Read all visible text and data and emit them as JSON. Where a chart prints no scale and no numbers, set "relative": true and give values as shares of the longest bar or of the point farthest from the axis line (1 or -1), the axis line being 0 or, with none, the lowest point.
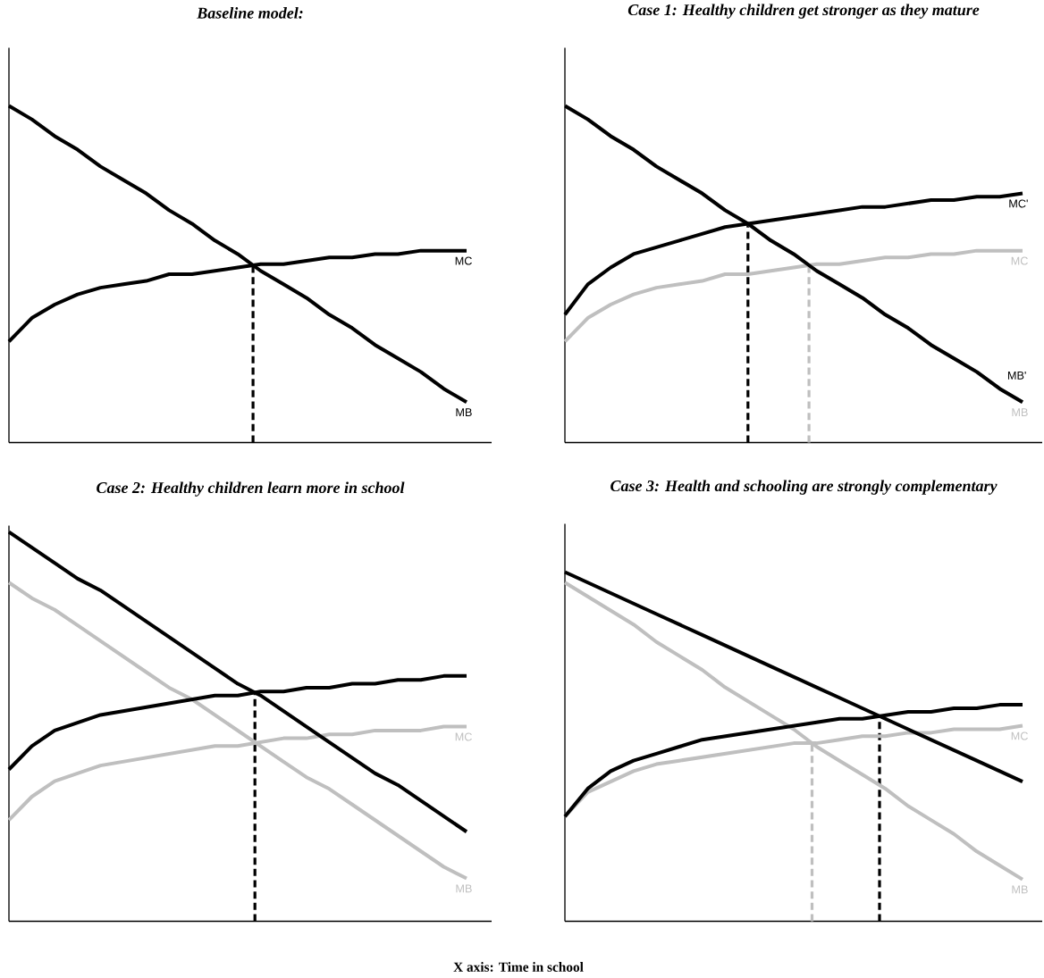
{
  "chart_data": [
    {
      "type": "line",
      "title": "Baseline model:",
      "relative": true,
      "tick_labels": false,
      "categories": [
        null,
        null,
        null,
        null,
        null,
        null,
        null,
        null,
        null,
        null,
        null,
        null,
        null,
        null,
        null,
        null,
        null,
        null,
        null,
        null,
        null
      ],
      "series": [
        {
          "name": "MC",
          "color": "#000000",
          "values": [
            0.3,
            0.37,
            0.41,
            0.44,
            0.46,
            0.47,
            0.48,
            0.5,
            0.5,
            0.51,
            0.52,
            0.53,
            0.53,
            0.54,
            0.55,
            0.55,
            0.56,
            0.56,
            0.57,
            0.57,
            0.57
          ]
        },
        {
          "name": "MB",
          "color": "#000000",
          "values": [
            1.0,
            0.96,
            0.91,
            0.87,
            0.82,
            0.78,
            0.74,
            0.69,
            0.65,
            0.6,
            0.56,
            0.51,
            0.47,
            0.43,
            0.38,
            0.34,
            0.29,
            0.25,
            0.21,
            0.16,
            0.12
          ]
        }
      ]
    },
    {
      "type": "line",
      "title": "Case 1: Healthy children get stronger as they mature",
      "relative": true,
      "tick_labels": false,
      "categories": [
        null,
        null,
        null,
        null,
        null,
        null,
        null,
        null,
        null,
        null,
        null,
        null,
        null,
        null,
        null,
        null,
        null,
        null,
        null,
        null,
        null
      ],
      "series": [
        {
          "name": "MC",
          "color": "#bfbfbf",
          "values": [
            0.3,
            0.37,
            0.41,
            0.44,
            0.46,
            0.47,
            0.48,
            0.5,
            0.5,
            0.51,
            0.52,
            0.53,
            0.53,
            0.54,
            0.55,
            0.55,
            0.56,
            0.56,
            0.57,
            0.57,
            0.57
          ]
        },
        {
          "name": "MB",
          "color": "#bfbfbf",
          "values": [
            1.0,
            0.96,
            0.91,
            0.87,
            0.82,
            0.78,
            0.74,
            0.69,
            0.65,
            0.6,
            0.56,
            0.51,
            0.47,
            0.43,
            0.38,
            0.34,
            0.29,
            0.25,
            0.21,
            0.16,
            0.12
          ]
        },
        {
          "name": "MC'",
          "color": "#000000",
          "values": [
            0.38,
            0.47,
            0.52,
            0.56,
            0.58,
            0.6,
            0.62,
            0.64,
            0.65,
            0.66,
            0.67,
            0.68,
            0.69,
            0.7,
            0.7,
            0.71,
            0.72,
            0.72,
            0.73,
            0.73,
            0.74
          ]
        },
        {
          "name": "MB'",
          "color": "#000000",
          "values": [
            1.0,
            0.96,
            0.91,
            0.87,
            0.82,
            0.78,
            0.74,
            0.69,
            0.65,
            0.6,
            0.56,
            0.51,
            0.47,
            0.43,
            0.38,
            0.34,
            0.29,
            0.25,
            0.21,
            0.16,
            0.12
          ]
        }
      ]
    },
    {
      "type": "line",
      "title": "Case 2: Healthy children learn more in school",
      "relative": true,
      "tick_labels": false,
      "categories": [
        null,
        null,
        null,
        null,
        null,
        null,
        null,
        null,
        null,
        null,
        null,
        null,
        null,
        null,
        null,
        null,
        null,
        null,
        null,
        null,
        null
      ],
      "series": [
        {
          "name": "MC",
          "color": "#bfbfbf",
          "values": [
            0.26,
            0.32,
            0.36,
            0.38,
            0.4,
            0.41,
            0.42,
            0.43,
            0.44,
            0.45,
            0.45,
            0.46,
            0.47,
            0.47,
            0.48,
            0.48,
            0.49,
            0.49,
            0.49,
            0.5,
            0.5
          ]
        },
        {
          "name": "MB",
          "color": "#bfbfbf",
          "values": [
            0.87,
            0.83,
            0.8,
            0.76,
            0.72,
            0.68,
            0.64,
            0.6,
            0.57,
            0.53,
            0.49,
            0.45,
            0.41,
            0.37,
            0.34,
            0.3,
            0.26,
            0.22,
            0.18,
            0.14,
            0.11
          ]
        },
        {
          "color": "#000000",
          "values": [
            0.39,
            0.45,
            0.49,
            0.51,
            0.53,
            0.54,
            0.55,
            0.56,
            0.57,
            0.58,
            0.58,
            0.59,
            0.59,
            0.6,
            0.6,
            0.61,
            0.61,
            0.62,
            0.62,
            0.63,
            0.63
          ]
        },
        {
          "color": "#000000",
          "values": [
            1.0,
            0.96,
            0.92,
            0.88,
            0.85,
            0.81,
            0.77,
            0.73,
            0.69,
            0.65,
            0.61,
            0.58,
            0.54,
            0.5,
            0.46,
            0.42,
            0.38,
            0.35,
            0.31,
            0.27,
            0.23
          ]
        }
      ]
    },
    {
      "type": "line",
      "title": "Case 3: Health and schooling are strongly complementary",
      "relative": true,
      "tick_labels": false,
      "categories": [
        null,
        null,
        null,
        null,
        null,
        null,
        null,
        null,
        null,
        null,
        null,
        null,
        null,
        null,
        null,
        null,
        null,
        null,
        null,
        null,
        null
      ],
      "annotations": [
        "X axis: Time in school"
      ],
      "series": [
        {
          "name": "MC",
          "color": "#bfbfbf",
          "values": [
            0.3,
            0.37,
            0.4,
            0.43,
            0.45,
            0.46,
            0.47,
            0.48,
            0.49,
            0.5,
            0.51,
            0.51,
            0.52,
            0.53,
            0.53,
            0.54,
            0.54,
            0.55,
            0.55,
            0.55,
            0.56
          ]
        },
        {
          "name": "MB",
          "color": "#bfbfbf",
          "values": [
            0.97,
            0.93,
            0.89,
            0.85,
            0.8,
            0.76,
            0.72,
            0.67,
            0.63,
            0.59,
            0.55,
            0.5,
            0.46,
            0.42,
            0.38,
            0.33,
            0.29,
            0.25,
            0.2,
            0.16,
            0.12
          ]
        },
        {
          "color": "#000000",
          "values": [
            0.3,
            0.38,
            0.43,
            0.46,
            0.48,
            0.5,
            0.52,
            0.53,
            0.54,
            0.55,
            0.56,
            0.57,
            0.58,
            0.58,
            0.59,
            0.6,
            0.6,
            0.61,
            0.61,
            0.62,
            0.62
          ]
        },
        {
          "color": "#000000",
          "values": [
            1.0,
            0.97,
            0.94,
            0.91,
            0.88,
            0.85,
            0.82,
            0.79,
            0.76,
            0.73,
            0.7,
            0.67,
            0.64,
            0.61,
            0.58,
            0.55,
            0.52,
            0.49,
            0.46,
            0.43,
            0.4
          ]
        }
      ]
    }
  ]
}
